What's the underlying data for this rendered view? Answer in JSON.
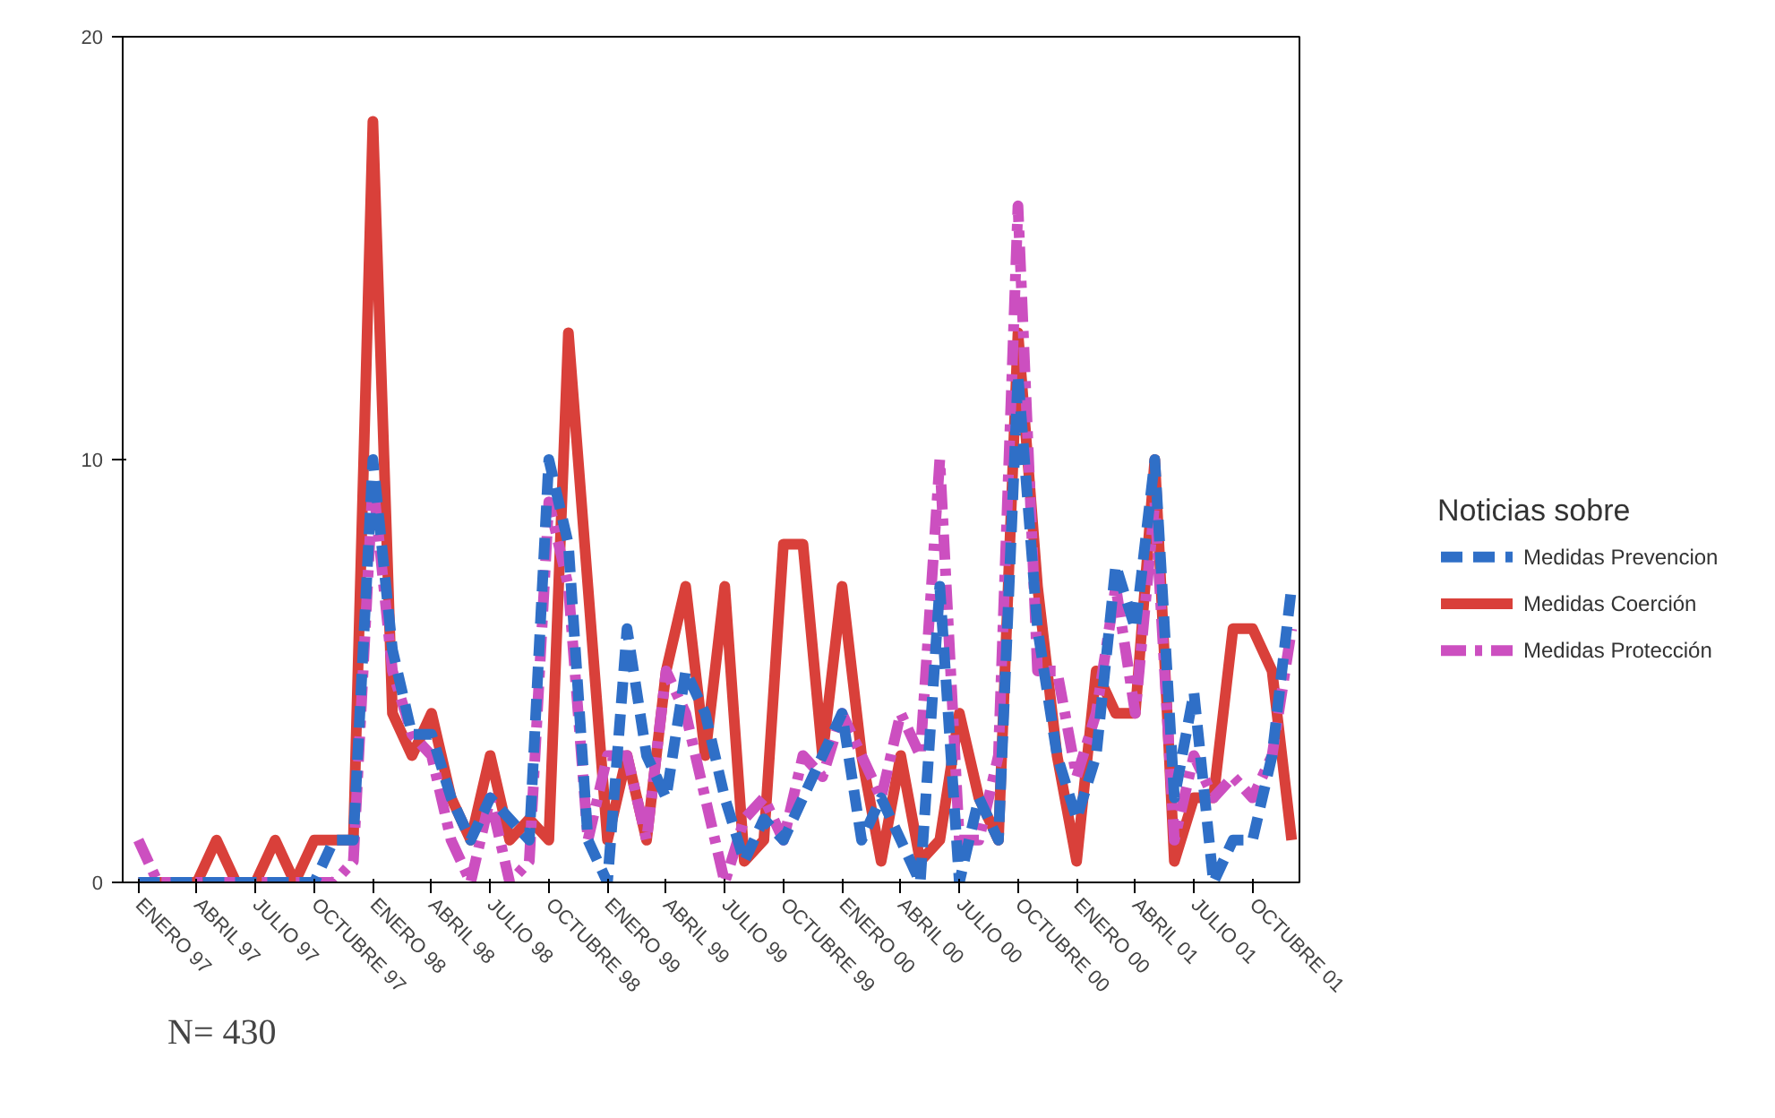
{
  "chart_data": {
    "type": "line",
    "categories": [
      "ENERO 97",
      null,
      null,
      "ABRIL 97",
      null,
      null,
      "JULIO 97",
      null,
      null,
      "OCTUBRE 97",
      null,
      null,
      "ENERO 98",
      null,
      null,
      "ABRIL 98",
      null,
      null,
      "JULIO 98",
      null,
      null,
      "OCTUBRE 98",
      null,
      null,
      "ENERO 99",
      null,
      null,
      "ABRIL 99",
      null,
      null,
      "JULIO 99",
      null,
      null,
      "OCTUBRE 99",
      null,
      null,
      "ENERO 00",
      null,
      null,
      "ABRIL 00",
      null,
      null,
      "JULIO 00",
      null,
      null,
      "OCTUBRE 00",
      null,
      null,
      "ENERO 00",
      null,
      null,
      "ABRIL 01",
      null,
      null,
      "JULIO 01",
      null,
      null,
      "OCTUBRE 01",
      null,
      null
    ],
    "series": [
      {
        "name": "Medidas Prevencion",
        "color": "#2f6fc7",
        "line_style": "dashed",
        "values": [
          0,
          0,
          0,
          0,
          0,
          0,
          0,
          0,
          0,
          0,
          1,
          1,
          10,
          5.5,
          3.5,
          3.5,
          2,
          1,
          2,
          1.5,
          1,
          10,
          8,
          1,
          0,
          6,
          3,
          2,
          5,
          4,
          2,
          0.5,
          1.5,
          1,
          2,
          3,
          4,
          1,
          2,
          1,
          0,
          7,
          0,
          2,
          1,
          12,
          6,
          3,
          1.5,
          3,
          7.5,
          6,
          10,
          2,
          4.5,
          0,
          1,
          1,
          3,
          7
        ]
      },
      {
        "name": "Medidas Coerción",
        "color": "#d9403a",
        "line_style": "solid",
        "values": [
          0,
          0,
          0,
          0,
          1,
          0,
          0,
          1,
          0,
          1,
          1,
          1,
          18,
          4,
          3,
          4,
          2,
          1,
          3,
          1,
          1.5,
          1,
          13,
          7,
          1,
          3,
          1,
          5,
          7,
          3,
          7,
          0.5,
          1,
          8,
          8,
          3,
          7,
          3,
          0.5,
          3,
          0.5,
          1,
          4,
          2,
          1,
          13,
          7,
          3,
          0.5,
          5,
          4,
          4,
          10,
          0.5,
          2,
          2,
          6,
          6,
          5,
          1
        ]
      },
      {
        "name": "Medidas Protección",
        "color": "#cc4fc0",
        "line_style": "dashdot",
        "values": [
          1,
          0,
          0,
          0,
          0,
          0,
          0,
          0,
          0,
          0,
          0,
          0.5,
          9.5,
          5,
          3.5,
          3,
          1,
          0,
          2,
          0,
          0.5,
          9,
          7,
          1,
          3,
          3,
          1,
          5,
          4,
          2,
          0,
          1.5,
          2,
          1,
          3,
          2.5,
          4,
          3,
          2,
          4,
          3,
          10,
          1,
          1,
          3,
          16,
          5,
          5,
          2.5,
          4,
          7,
          4,
          9,
          1,
          3,
          2,
          2.5,
          2,
          3,
          6
        ]
      }
    ],
    "ylim": [
      0,
      20
    ],
    "yticks": [
      0,
      10,
      20
    ],
    "legend": "right",
    "legend_title": "Noticias sobre",
    "annotations": [
      "N= 430"
    ]
  }
}
